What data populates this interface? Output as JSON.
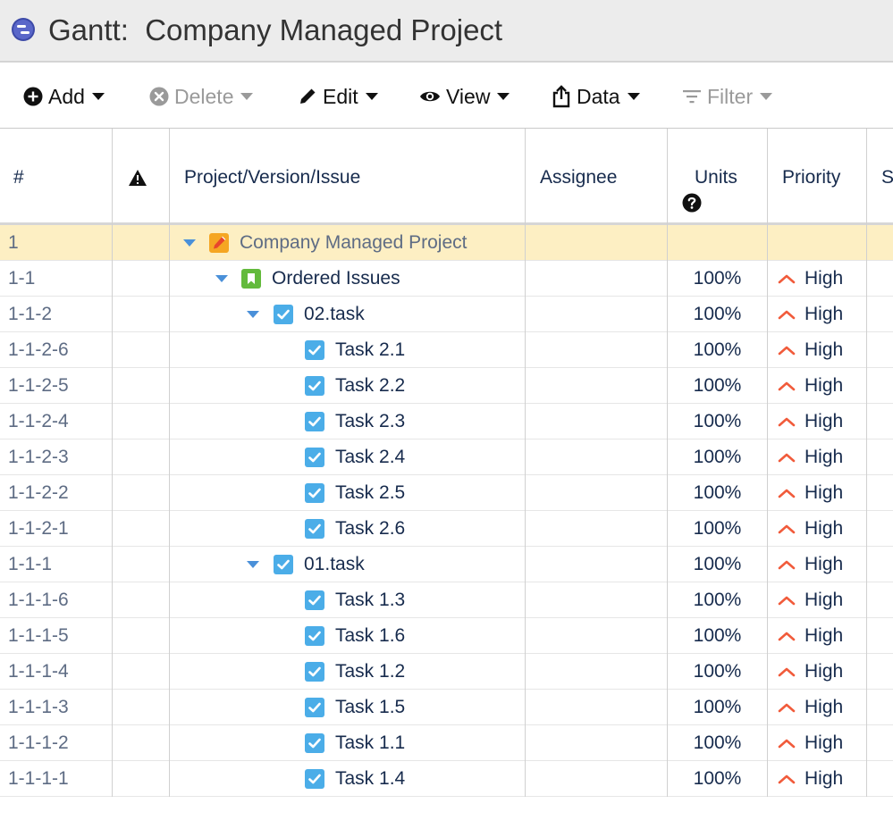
{
  "window": {
    "title": "Gantt:  Company Managed Project"
  },
  "toolbar": {
    "add": "Add",
    "delete": "Delete",
    "edit": "Edit",
    "view": "View",
    "data": "Data",
    "filter": "Filter"
  },
  "columns": {
    "num": "#",
    "project": "Project/Version/Issue",
    "assignee": "Assignee",
    "units": "Units",
    "priority": "Priority",
    "status_partial": "St"
  },
  "rows": [
    {
      "num": "1",
      "name": "Company Managed Project",
      "units": "",
      "priority": "",
      "type": "project-icon",
      "level": 0,
      "expand": true,
      "selected": true
    },
    {
      "num": "1-1",
      "name": "Ordered Issues",
      "units": "100%",
      "priority": "High",
      "type": "bookmark-icon",
      "level": 1,
      "expand": true
    },
    {
      "num": "1-1-2",
      "name": "02.task",
      "units": "100%",
      "priority": "High",
      "type": "task-icon",
      "level": 2,
      "expand": true
    },
    {
      "num": "1-1-2-6",
      "name": "Task 2.1",
      "units": "100%",
      "priority": "High",
      "type": "task-icon",
      "level": 3
    },
    {
      "num": "1-1-2-5",
      "name": "Task 2.2",
      "units": "100%",
      "priority": "High",
      "type": "task-icon",
      "level": 3
    },
    {
      "num": "1-1-2-4",
      "name": "Task 2.3",
      "units": "100%",
      "priority": "High",
      "type": "task-icon",
      "level": 3
    },
    {
      "num": "1-1-2-3",
      "name": "Task 2.4",
      "units": "100%",
      "priority": "High",
      "type": "task-icon",
      "level": 3
    },
    {
      "num": "1-1-2-2",
      "name": "Task 2.5",
      "units": "100%",
      "priority": "High",
      "type": "task-icon",
      "level": 3
    },
    {
      "num": "1-1-2-1",
      "name": "Task 2.6",
      "units": "100%",
      "priority": "High",
      "type": "task-icon",
      "level": 3
    },
    {
      "num": "1-1-1",
      "name": "01.task",
      "units": "100%",
      "priority": "High",
      "type": "task-icon",
      "level": 2,
      "expand": true
    },
    {
      "num": "1-1-1-6",
      "name": "Task 1.3",
      "units": "100%",
      "priority": "High",
      "type": "task-icon",
      "level": 3
    },
    {
      "num": "1-1-1-5",
      "name": "Task 1.6",
      "units": "100%",
      "priority": "High",
      "type": "task-icon",
      "level": 3
    },
    {
      "num": "1-1-1-4",
      "name": "Task 1.2",
      "units": "100%",
      "priority": "High",
      "type": "task-icon",
      "level": 3
    },
    {
      "num": "1-1-1-3",
      "name": "Task 1.5",
      "units": "100%",
      "priority": "High",
      "type": "task-icon",
      "level": 3
    },
    {
      "num": "1-1-1-2",
      "name": "Task 1.1",
      "units": "100%",
      "priority": "High",
      "type": "task-icon",
      "level": 3
    },
    {
      "num": "1-1-1-1",
      "name": "Task 1.4",
      "units": "100%",
      "priority": "High",
      "type": "task-icon",
      "level": 3
    }
  ],
  "colors": {
    "selected_row": "#fdefc3",
    "task_icon": "#4bade8",
    "bookmark_icon": "#63ba3c",
    "project_icon": "#f5a623",
    "priority_high": "#f15b3b",
    "expand_triangle": "#4a90d9"
  }
}
